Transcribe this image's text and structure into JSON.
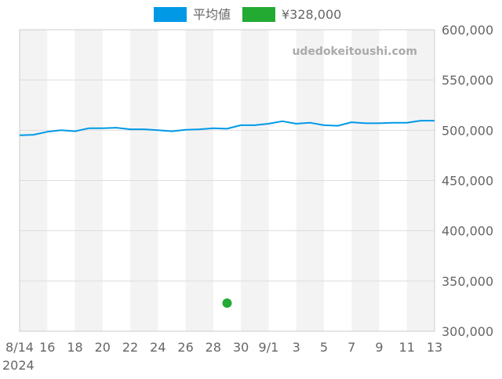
{
  "chart_data": {
    "type": "line",
    "watermark": "udedokeitoushi.com",
    "legend": {
      "placement": "top-center",
      "entries": [
        {
          "label": "平均値",
          "color": "#0099e6"
        },
        {
          "label": "¥328,000",
          "color": "#22aa33"
        }
      ]
    },
    "x_axis": {
      "ticks": [
        "8/14",
        "16",
        "18",
        "20",
        "22",
        "24",
        "26",
        "28",
        "30",
        "9/1",
        "3",
        "5",
        "7",
        "9",
        "11",
        "13"
      ],
      "sublabel": "2024",
      "range": [
        "2024-08-14",
        "2024-09-13"
      ]
    },
    "y_axis": {
      "position": "right",
      "ticks": [
        "300,000",
        "350,000",
        "400,000",
        "450,000",
        "500,000",
        "550,000",
        "600,000"
      ],
      "ylim": [
        300000,
        600000
      ]
    },
    "grid": true,
    "alternating_day_shading": true,
    "series": [
      {
        "name": "平均値",
        "color": "#0099e6",
        "x": [
          "2024-08-14",
          "2024-08-15",
          "2024-08-16",
          "2024-08-17",
          "2024-08-18",
          "2024-08-19",
          "2024-08-20",
          "2024-08-21",
          "2024-08-22",
          "2024-08-23",
          "2024-08-24",
          "2024-08-25",
          "2024-08-26",
          "2024-08-27",
          "2024-08-28",
          "2024-08-29",
          "2024-08-30",
          "2024-08-31",
          "2024-09-01",
          "2024-09-02",
          "2024-09-03",
          "2024-09-04",
          "2024-09-05",
          "2024-09-06",
          "2024-09-07",
          "2024-09-08",
          "2024-09-09",
          "2024-09-10",
          "2024-09-11",
          "2024-09-12",
          "2024-09-13"
        ],
        "values": [
          495000,
          495500,
          498500,
          500000,
          499000,
          502000,
          502000,
          502500,
          501000,
          501000,
          500000,
          499000,
          500500,
          501000,
          502000,
          501500,
          505000,
          505000,
          506500,
          509000,
          506500,
          507500,
          505000,
          504500,
          508000,
          507000,
          507000,
          507500,
          507500,
          509500,
          509500
        ]
      },
      {
        "name": "¥328,000",
        "color": "#22aa33",
        "marker": "point",
        "x": [
          "2024-08-29"
        ],
        "values": [
          328000
        ]
      }
    ]
  }
}
